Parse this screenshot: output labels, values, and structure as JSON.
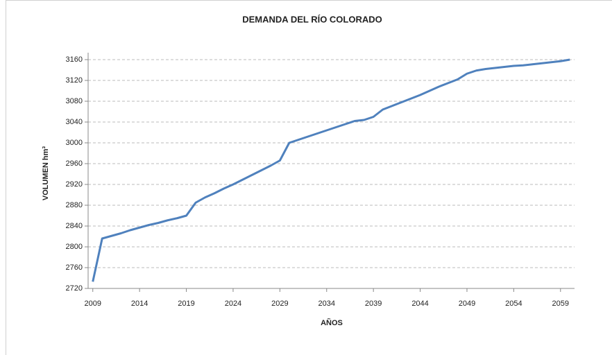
{
  "chart_data": {
    "type": "line",
    "title": "DEMANDA DEL  RÍO COLORADO",
    "x_label": "AÑOS",
    "y_label": "VOLUMEN hm³",
    "x": [
      2009,
      2010,
      2011,
      2012,
      2013,
      2014,
      2015,
      2016,
      2017,
      2018,
      2019,
      2020,
      2021,
      2022,
      2023,
      2024,
      2025,
      2026,
      2027,
      2028,
      2029,
      2030,
      2031,
      2032,
      2033,
      2034,
      2035,
      2036,
      2037,
      2038,
      2039,
      2040,
      2041,
      2042,
      2043,
      2044,
      2045,
      2046,
      2047,
      2048,
      2049,
      2050,
      2051,
      2052,
      2053,
      2054,
      2055,
      2056,
      2057,
      2058,
      2059,
      2060
    ],
    "series": [
      {
        "name": "Demanda",
        "color": "#4f81bd",
        "values": [
          2733,
          2816,
          2821,
          2826,
          2832,
          2837,
          2842,
          2846,
          2851,
          2855,
          2860,
          2885,
          2895,
          2903,
          2912,
          2920,
          2929,
          2938,
          2947,
          2956,
          2966,
          3000,
          3006,
          3012,
          3018,
          3024,
          3030,
          3036,
          3042,
          3044,
          3050,
          3064,
          3071,
          3078,
          3085,
          3092,
          3100,
          3108,
          3115,
          3122,
          3133,
          3139,
          3142,
          3144,
          3146,
          3148,
          3149,
          3151,
          3153,
          3155,
          3157,
          3160
        ]
      }
    ],
    "xlim": [
      2008.5,
      2060.5
    ],
    "xticks": [
      2009,
      2014,
      2019,
      2024,
      2029,
      2034,
      2039,
      2044,
      2049,
      2054,
      2059
    ],
    "ylim": [
      2720,
      3160
    ],
    "yticks": [
      2720,
      2760,
      2800,
      2840,
      2880,
      2920,
      2960,
      3000,
      3040,
      3080,
      3120,
      3160
    ],
    "grid": true
  }
}
